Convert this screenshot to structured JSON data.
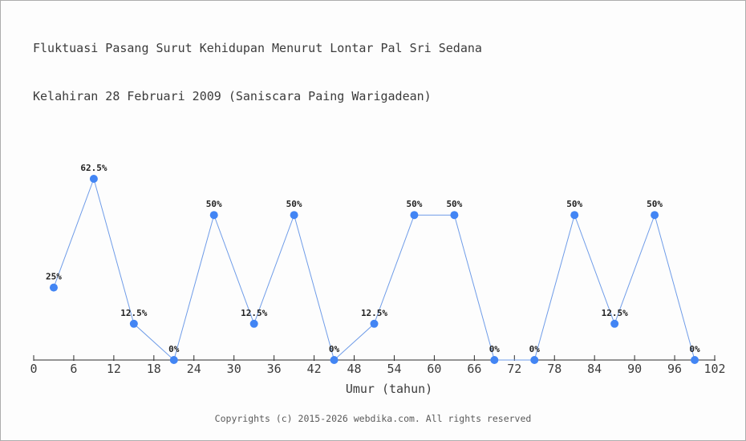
{
  "page": {
    "title_line1": "Fluktuasi Pasang Surut Kehidupan Menurut Lontar Pal Sri Sedana",
    "title_line2": "Kelahiran 28 Februari 2009 (Saniscara Paing Warigadean)",
    "footer": "Copyrights (c) 2015-2026 webdika.com. All rights reserved"
  },
  "chart_data": {
    "type": "line",
    "title": "Fluktuasi Pasang Surut Kehidupan Menurut Lontar Pal Sri Sedana",
    "subtitle": "Kelahiran 28 Februari 2009 (Saniscara Paing Warigadean)",
    "xlabel": "Umur (tahun)",
    "ylabel": "",
    "x": [
      3,
      9,
      15,
      21,
      27,
      33,
      39,
      45,
      51,
      57,
      63,
      69,
      75,
      81,
      87,
      93,
      99
    ],
    "values": [
      25,
      62.5,
      12.5,
      0,
      50,
      12.5,
      50,
      0,
      12.5,
      50,
      50,
      0,
      0,
      50,
      12.5,
      50,
      0
    ],
    "point_labels": [
      "25%",
      "62.5%",
      "12.5%",
      "0%",
      "50%",
      "12.5%",
      "50%",
      "0%",
      "12.5%",
      "50%",
      "50%",
      "0%",
      "0%",
      "50%",
      "12.5%",
      "50%",
      "0%"
    ],
    "x_ticks": [
      0,
      6,
      12,
      18,
      24,
      30,
      36,
      42,
      48,
      54,
      60,
      66,
      72,
      78,
      84,
      90,
      96,
      102
    ],
    "xlim": [
      0,
      102
    ],
    "ylim": [
      0,
      100
    ],
    "grid": false,
    "legend": false,
    "colors": {
      "line": "#6f9ce8",
      "point": "#4285f4",
      "axis": "#2b2b2b",
      "tick_label": "#3b3b3b",
      "point_label": "#222222",
      "title": "#3b3b3b",
      "footer": "#5a5a5a",
      "background": "#fdfdfd",
      "page_border": "#adadad"
    }
  }
}
